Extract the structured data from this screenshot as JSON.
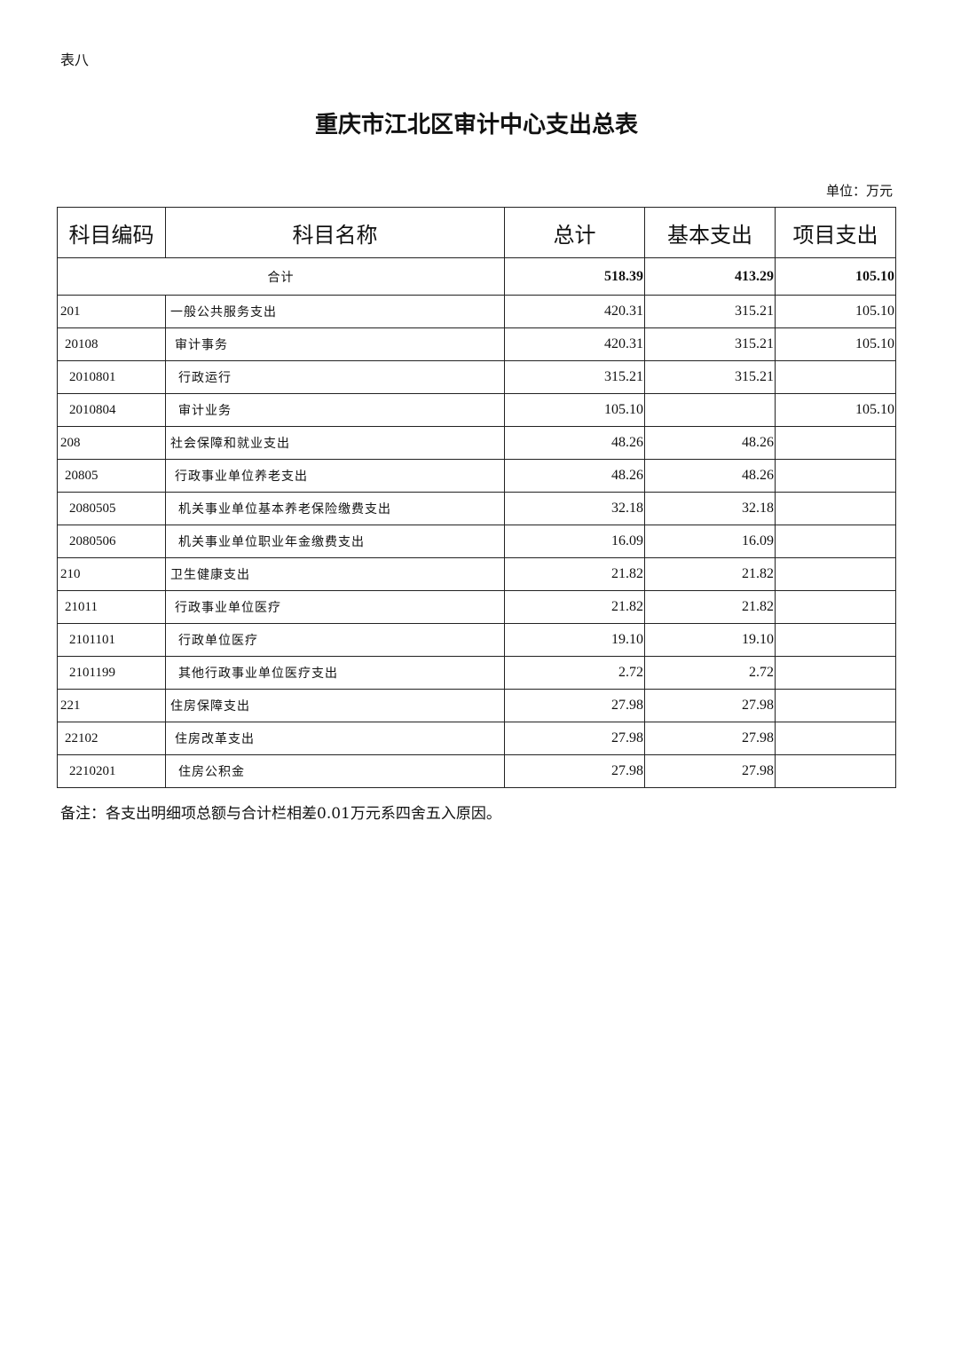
{
  "doc_label": "表八",
  "title": "重庆市江北区审计中心支出总表",
  "unit": "单位：万元",
  "headers": [
    "科目编码",
    "科目名称",
    "总计",
    "基本支出",
    "项目支出"
  ],
  "total": {
    "name": "合计",
    "total": "518.39",
    "basic": "413.29",
    "project": "105.10"
  },
  "rows": [
    {
      "code": "201",
      "name": "一般公共服务支出",
      "total": "420.31",
      "basic": "315.21",
      "project": "105.10",
      "level": 1
    },
    {
      "code": "20108",
      "name": "审计事务",
      "total": "420.31",
      "basic": "315.21",
      "project": "105.10",
      "level": 2
    },
    {
      "code": "2010801",
      "name": "行政运行",
      "total": "315.21",
      "basic": "315.21",
      "project": "",
      "level": 3
    },
    {
      "code": "2010804",
      "name": "审计业务",
      "total": "105.10",
      "basic": "",
      "project": "105.10",
      "level": 3
    },
    {
      "code": "208",
      "name": "社会保障和就业支出",
      "total": "48.26",
      "basic": "48.26",
      "project": "",
      "level": 1
    },
    {
      "code": "20805",
      "name": "行政事业单位养老支出",
      "total": "48.26",
      "basic": "48.26",
      "project": "",
      "level": 2
    },
    {
      "code": "2080505",
      "name": "机关事业单位基本养老保险缴费支出",
      "total": "32.18",
      "basic": "32.18",
      "project": "",
      "level": 3
    },
    {
      "code": "2080506",
      "name": "机关事业单位职业年金缴费支出",
      "total": "16.09",
      "basic": "16.09",
      "project": "",
      "level": 3
    },
    {
      "code": "210",
      "name": "卫生健康支出",
      "total": "21.82",
      "basic": "21.82",
      "project": "",
      "level": 1
    },
    {
      "code": "21011",
      "name": "行政事业单位医疗",
      "total": "21.82",
      "basic": "21.82",
      "project": "",
      "level": 2
    },
    {
      "code": "2101101",
      "name": "行政单位医疗",
      "total": "19.10",
      "basic": "19.10",
      "project": "",
      "level": 3
    },
    {
      "code": "2101199",
      "name": "其他行政事业单位医疗支出",
      "total": "2.72",
      "basic": "2.72",
      "project": "",
      "level": 3
    },
    {
      "code": "221",
      "name": "住房保障支出",
      "total": "27.98",
      "basic": "27.98",
      "project": "",
      "level": 1
    },
    {
      "code": "22102",
      "name": "住房改革支出",
      "total": "27.98",
      "basic": "27.98",
      "project": "",
      "level": 2
    },
    {
      "code": "2210201",
      "name": "住房公积金",
      "total": "27.98",
      "basic": "27.98",
      "project": "",
      "level": 3
    }
  ],
  "note": "备注：各支出明细项总额与合计栏相差0.01万元系四舍五入原因。"
}
